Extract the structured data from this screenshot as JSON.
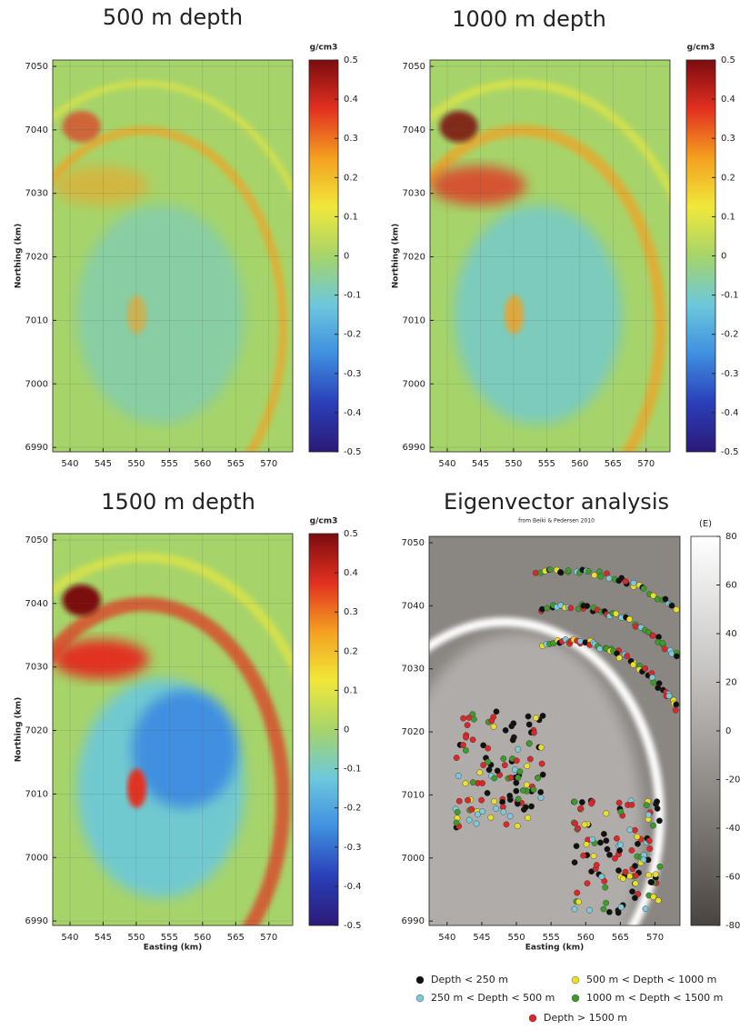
{
  "chart_data": [
    {
      "type": "heatmap",
      "title": "500 m depth",
      "ylabel": "Northing (km)",
      "xlim": [
        537.4,
        573.6
      ],
      "xticks": [
        540,
        545,
        550,
        555,
        560,
        565,
        570
      ],
      "ylim": [
        6989.3,
        7051
      ],
      "yticks": [
        6990,
        7000,
        7010,
        7020,
        7030,
        7040,
        7050
      ],
      "grid": true,
      "colorbar_label": "g/cm3",
      "clim": [
        -0.5,
        0.5
      ],
      "cticks": [
        -0.5,
        -0.4,
        -0.3,
        -0.2,
        -0.1,
        0,
        0.1,
        0.2,
        0.3,
        0.4,
        0.5
      ],
      "colormap": [
        "#2b1a78",
        "#2a3fb8",
        "#3f8fe0",
        "#6cc8dc",
        "#a6d46a",
        "#f0e83a",
        "#f4a020",
        "#e23020",
        "#7c0c10"
      ]
    },
    {
      "type": "heatmap",
      "title": "1000 m depth",
      "ylabel": "Northing (km)",
      "xlim": [
        537.4,
        573.6
      ],
      "xticks": [
        540,
        545,
        550,
        555,
        560,
        565,
        570
      ],
      "ylim": [
        6989.3,
        7051
      ],
      "yticks": [
        6990,
        7000,
        7010,
        7020,
        7030,
        7040,
        7050
      ],
      "grid": true,
      "colorbar_label": "g/cm3",
      "clim": [
        -0.5,
        0.5
      ],
      "cticks": [
        -0.5,
        -0.4,
        -0.3,
        -0.2,
        -0.1,
        0,
        0.1,
        0.2,
        0.3,
        0.4,
        0.5
      ],
      "colormap": [
        "#2b1a78",
        "#2a3fb8",
        "#3f8fe0",
        "#6cc8dc",
        "#a6d46a",
        "#f0e83a",
        "#f4a020",
        "#e23020",
        "#7c0c10"
      ]
    },
    {
      "type": "heatmap",
      "title": "1500 m depth",
      "xlabel": "Easting (km)",
      "ylabel": "Northing (km)",
      "xlim": [
        537.4,
        573.6
      ],
      "xticks": [
        540,
        545,
        550,
        555,
        560,
        565,
        570
      ],
      "ylim": [
        6989.3,
        7051
      ],
      "yticks": [
        6990,
        7000,
        7010,
        7020,
        7030,
        7040,
        7050
      ],
      "grid": true,
      "colorbar_label": "g/cm3",
      "clim": [
        -0.5,
        0.5
      ],
      "cticks": [
        -0.5,
        -0.4,
        -0.3,
        -0.2,
        -0.1,
        0,
        0.1,
        0.2,
        0.3,
        0.4,
        0.5
      ],
      "colormap": [
        "#2b1a78",
        "#2a3fb8",
        "#3f8fe0",
        "#6cc8dc",
        "#a6d46a",
        "#f0e83a",
        "#f4a020",
        "#e23020",
        "#7c0c10"
      ]
    },
    {
      "type": "heatmap",
      "title": "Eigenvector analysis",
      "subtitle": "from Beiki & Pedersen 2010",
      "xlabel": "Easting (km)",
      "xlim": [
        537.4,
        573.6
      ],
      "xticks": [
        540,
        545,
        550,
        555,
        560,
        565,
        570
      ],
      "ylim": [
        6989.3,
        7051
      ],
      "yticks": [
        6990,
        7000,
        7010,
        7020,
        7030,
        7040,
        7050
      ],
      "grid": false,
      "colorbar_label": "(E)",
      "clim": [
        -80,
        80
      ],
      "cticks": [
        -80,
        -60,
        -40,
        -20,
        0,
        20,
        40,
        60,
        80
      ],
      "colormap": [
        "#4a4440",
        "#8a8682",
        "#c8c6c4",
        "#ffffff"
      ],
      "legend": [
        {
          "name": "Depth < 250 m",
          "color": "#111111"
        },
        {
          "name": "500 m < Depth < 1000 m",
          "color": "#e8e02a"
        },
        {
          "name": "250 m < Depth < 500 m",
          "color": "#7ec8d8"
        },
        {
          "name": "1000 m < Depth < 1500 m",
          "color": "#3f9a2c"
        },
        {
          "name": "Depth > 1500 m",
          "color": "#d8282a"
        }
      ]
    }
  ]
}
